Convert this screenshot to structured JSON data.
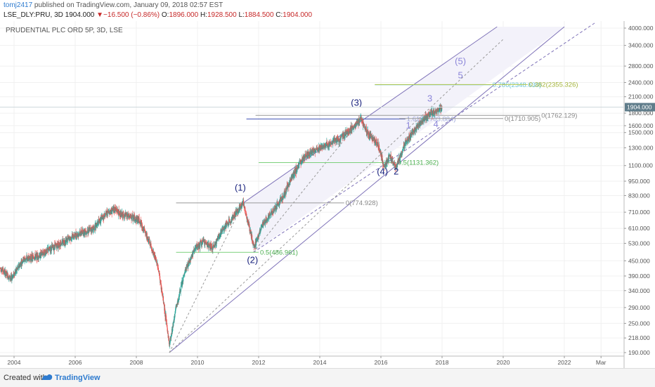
{
  "header": {
    "user": "tomj2417",
    "published": "published on TradingView.com, January 09, 2018 02:57 EST",
    "symbol": "LSE_DLY:PRU, 3D",
    "price": "1904.000",
    "change": "▼−16.500 (−0.86%)",
    "open_label": "O:",
    "open": "1896.000",
    "high_label": "H:",
    "high": "1928.500",
    "low_label": "L:",
    "low": "1884.500",
    "close_label": "C:",
    "close": "1904.000"
  },
  "footer": {
    "created_with": "Created with",
    "brand": "TradingView"
  },
  "colors": {
    "up": "#26a69a",
    "down": "#ef5350",
    "channel": "#7e72b8",
    "fib_green": "#7bd17b",
    "fib_gray": "#888888",
    "wave_main": "#1a237e",
    "wave_sub": "#8c86d9",
    "price_badge": "#607d8b"
  },
  "chart_data": {
    "type": "candlestick",
    "title": "PRUDENTIAL PLC ORD 5P, 3D, LSE",
    "y_scale": "log",
    "y_ticks": [
      4000,
      3400,
      2800,
      2400,
      2100,
      1800,
      1600,
      1500,
      1300,
      1100,
      950,
      830,
      710,
      610,
      530,
      450,
      390,
      340,
      290,
      250,
      218,
      190
    ],
    "y_tick_labels": [
      "4000.000",
      "3400.000",
      "2800.000",
      "2400.000",
      "2100.000",
      "1800.000",
      "1600.000",
      "1500.000",
      "1300.000",
      "1100.000",
      "950.000",
      "830.000",
      "710.000",
      "610.000",
      "530.000",
      "450.000",
      "390.000",
      "340.000",
      "290.000",
      "250.000",
      "218.000",
      "190.000"
    ],
    "x_ticks": [
      "2004",
      "2006",
      "2008",
      "2010",
      "2012",
      "2014",
      "2016",
      "2018",
      "2020",
      "2022",
      "Mar"
    ],
    "x_tick_years": [
      2004,
      2006,
      2008,
      2010,
      2012,
      2014,
      2016,
      2018,
      2020,
      2022,
      2023.2
    ],
    "last_price_label": "1904.000",
    "last_price": 1904,
    "price_path": [
      [
        2003.55,
        420
      ],
      [
        2003.9,
        380
      ],
      [
        2004.3,
        455
      ],
      [
        2004.8,
        470
      ],
      [
        2005.2,
        505
      ],
      [
        2005.7,
        545
      ],
      [
        2006.1,
        580
      ],
      [
        2006.6,
        610
      ],
      [
        2007.0,
        700
      ],
      [
        2007.3,
        735
      ],
      [
        2007.5,
        690
      ],
      [
        2007.8,
        680
      ],
      [
        2008.1,
        660
      ],
      [
        2008.4,
        545
      ],
      [
        2008.7,
        430
      ],
      [
        2008.9,
        300
      ],
      [
        2009.08,
        205
      ],
      [
        2009.3,
        290
      ],
      [
        2009.6,
        410
      ],
      [
        2009.9,
        500
      ],
      [
        2010.2,
        540
      ],
      [
        2010.5,
        505
      ],
      [
        2010.8,
        600
      ],
      [
        2011.1,
        660
      ],
      [
        2011.3,
        720
      ],
      [
        2011.5,
        775
      ],
      [
        2011.7,
        610
      ],
      [
        2011.85,
        510
      ],
      [
        2012.1,
        620
      ],
      [
        2012.4,
        700
      ],
      [
        2012.8,
        820
      ],
      [
        2013.1,
        1000
      ],
      [
        2013.5,
        1200
      ],
      [
        2013.9,
        1280
      ],
      [
        2014.3,
        1350
      ],
      [
        2014.6,
        1400
      ],
      [
        2014.9,
        1500
      ],
      [
        2015.2,
        1620
      ],
      [
        2015.35,
        1704
      ],
      [
        2015.6,
        1480
      ],
      [
        2015.9,
        1350
      ],
      [
        2016.1,
        1100
      ],
      [
        2016.3,
        1200
      ],
      [
        2016.5,
        1080
      ],
      [
        2016.8,
        1350
      ],
      [
        2017.0,
        1480
      ],
      [
        2017.3,
        1650
      ],
      [
        2017.6,
        1780
      ],
      [
        2017.9,
        1850
      ],
      [
        2018.0,
        1904
      ]
    ],
    "channel": {
      "lower": [
        [
          2009.08,
          190
        ],
        [
          2022.0,
          4050
        ]
      ],
      "middle": [
        [
          2011.83,
          487
        ],
        [
          2023.0,
          4200
        ]
      ],
      "upper_start": [
        2011.5,
        775
      ],
      "upper_end": [
        2019.8,
        4050
      ],
      "dashed_fan": [
        [
          2009.08,
          190
        ],
        [
          2020.0,
          3600
        ]
      ]
    },
    "fib_levels": [
      {
        "label": "0(774.928)",
        "value": 775,
        "x_from": 2009.3,
        "x_to": 2014.8,
        "color": "gray"
      },
      {
        "label": "0.5(486.961)",
        "value": 487,
        "x_from": 2009.3,
        "x_to": 2012.0,
        "color": "green"
      },
      {
        "label": "0(1762.129)",
        "value": 1762,
        "x_from": 2011.9,
        "x_to": 2021.2,
        "color": "gray"
      },
      {
        "label": "0.5(1131.362)",
        "value": 1131,
        "x_from": 2012.0,
        "x_to": 2016.5,
        "color": "green"
      },
      {
        "label": "1.618(1703.884)",
        "value": 1704,
        "x_from": 2011.6,
        "x_to": 2016.8,
        "color": "blue"
      },
      {
        "label": "0(1710.905)",
        "value": 1711,
        "x_from": 2016.6,
        "x_to": 2020.0,
        "color": "gray"
      },
      {
        "label": "0.786(2348.630)",
        "value": 2348,
        "x_from": 2015.8,
        "x_to": 2019.6,
        "color": "teal"
      },
      {
        "label": "0.382(2355.326)",
        "value": 2355,
        "x_from": 2015.8,
        "x_to": 2020.8,
        "color": "olive"
      }
    ],
    "wave_labels": [
      {
        "label": "(1)",
        "x": 2011.4,
        "value": 870,
        "style": "main"
      },
      {
        "label": "(2)",
        "x": 2011.8,
        "value": 440,
        "style": "main"
      },
      {
        "label": "(3)",
        "x": 2015.2,
        "value": 1930,
        "style": "main"
      },
      {
        "label": "(4)",
        "x": 2016.05,
        "value": 1010,
        "style": "main"
      },
      {
        "label": "2",
        "x": 2016.5,
        "value": 1010,
        "style": "main"
      },
      {
        "label": "1",
        "x": 2016.9,
        "value": 1560,
        "style": "sub"
      },
      {
        "label": "3",
        "x": 2017.6,
        "value": 2010,
        "style": "sub"
      },
      {
        "label": "4",
        "x": 2017.8,
        "value": 1580,
        "style": "sub"
      },
      {
        "label": "5",
        "x": 2018.6,
        "value": 2500,
        "style": "sub"
      },
      {
        "label": "(5)",
        "x": 2018.6,
        "value": 2850,
        "style": "sub"
      }
    ]
  }
}
